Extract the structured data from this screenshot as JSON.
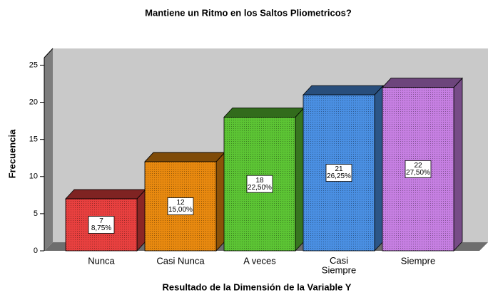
{
  "chart_data": {
    "type": "bar3d",
    "title": "Mantiene un Ritmo en los Saltos Pliometricos?",
    "xlabel": "Resultado de la Dimensión de la Variable Y",
    "ylabel": "Frecuencia",
    "categories": [
      "Nunca",
      "Casi Nunca",
      "A veces",
      "Casi\nSiempre",
      "Siempre"
    ],
    "values": [
      7,
      12,
      18,
      21,
      22
    ],
    "percent_labels": [
      "8,75%",
      "15,00%",
      "22,50%",
      "26,25%",
      "27,50%"
    ],
    "colors": [
      "#e8403f",
      "#e8890f",
      "#5cc434",
      "#4a8fe2",
      "#c67fe2"
    ],
    "ylim": [
      0,
      26
    ],
    "yticks": [
      0,
      5,
      10,
      15,
      20,
      25
    ],
    "grid": false
  }
}
